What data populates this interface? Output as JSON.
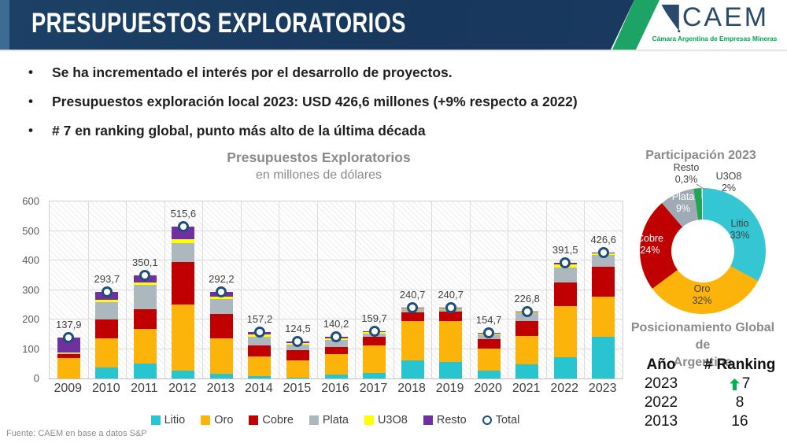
{
  "header": {
    "title": "PRESUPUESTOS EXPLORATORIOS",
    "logo_text": "CAEM",
    "logo_subtitle": "Cámara Argentina de Empresas Mineras"
  },
  "bullets": [
    "Se ha incrementado el interés por el desarrollo de proyectos.",
    "Presupuestos exploración local 2023: USD 426,6 millones (+9% respecto a 2022)",
    "# 7 en ranking global, punto más alto de la última década"
  ],
  "chart_data": [
    {
      "type": "bar",
      "stacked": true,
      "title": "Presupuestos Exploratorios",
      "subtitle": "en millones de dólares",
      "categories": [
        "2009",
        "2010",
        "2011",
        "2012",
        "2013",
        "2014",
        "2015",
        "2016",
        "2017",
        "2018",
        "2019",
        "2020",
        "2021",
        "2022",
        "2023"
      ],
      "series": [
        {
          "name": "Litio",
          "color": "#28c4d0",
          "values": [
            0,
            38,
            50,
            28,
            15,
            8,
            4,
            13,
            18,
            62,
            55,
            28,
            48,
            72,
            140.8
          ]
        },
        {
          "name": "Oro",
          "color": "#fdb40a",
          "values": [
            70,
            97,
            118,
            224,
            120,
            67,
            58,
            70,
            95,
            132,
            140,
            73,
            97,
            173,
            136.5
          ]
        },
        {
          "name": "Cobre",
          "color": "#c00000",
          "values": [
            13,
            65,
            67,
            144,
            83,
            37,
            33,
            25,
            28,
            30,
            33,
            32,
            50,
            80,
            102.4
          ]
        },
        {
          "name": "Plata",
          "color": "#adb8be",
          "values": [
            2,
            58,
            83,
            62,
            52,
            30,
            20,
            22,
            10,
            10,
            7,
            15.7,
            25.8,
            50,
            38.4
          ]
        },
        {
          "name": "U3O8",
          "color": "#ffff00",
          "values": [
            4,
            10,
            8,
            14,
            7,
            8,
            5.5,
            7,
            6,
            5,
            4,
            4,
            4,
            12,
            7.2
          ]
        },
        {
          "name": "Resto",
          "color": "#7030a0",
          "values": [
            48.9,
            25.7,
            24.1,
            43.6,
            15.2,
            7.2,
            4,
            3.2,
            2.7,
            1.7,
            1.7,
            2,
            2,
            4.5,
            1.3
          ]
        }
      ],
      "total_series": {
        "name": "Total",
        "marker": "circle",
        "values": [
          137.9,
          293.7,
          350.1,
          515.6,
          292.2,
          157.2,
          124.5,
          140.2,
          159.7,
          240.7,
          240.7,
          154.7,
          226.8,
          391.5,
          426.6
        ],
        "labels": [
          "137,9",
          "293,7",
          "350,1",
          "515,6",
          "292,2",
          "157,2",
          "124,5",
          "140,2",
          "159,7",
          "240,7",
          "240,7",
          "154,7",
          "226,8",
          "391,5",
          "426,6"
        ]
      },
      "ylim": [
        0,
        600
      ],
      "ystep": 100,
      "grid": true,
      "legend_position": "bottom"
    },
    {
      "type": "pie",
      "donut": true,
      "title": "Participación 2023",
      "slices": [
        {
          "label": "Litio",
          "pct": "33%",
          "value": 33,
          "color": "#35c6d4"
        },
        {
          "label": "Oro",
          "pct": "32%",
          "value": 32,
          "color": "#fdb40a"
        },
        {
          "label": "Cobre",
          "pct": "24%",
          "value": 24,
          "color": "#c00000"
        },
        {
          "label": "Plata",
          "pct": "9%",
          "value": 9,
          "color": "#9faab4"
        },
        {
          "label": "U3O8",
          "pct": "2%",
          "value": 2,
          "color": "#22a455"
        },
        {
          "label": "Resto",
          "pct": "0,3%",
          "value": 0.3,
          "color": "#e9edee"
        }
      ]
    }
  ],
  "ranking": {
    "title_line1": "Posicionamiento Global de",
    "title_line2": "Argentina",
    "col_year": "Año",
    "col_rank": "# Ranking",
    "rows": [
      {
        "year": "2023",
        "rank": "7",
        "up": true
      },
      {
        "year": "2022",
        "rank": "8",
        "up": false
      },
      {
        "year": "2013",
        "rank": "16",
        "up": false
      }
    ]
  },
  "footer": "Fuente: CAEM en base a datos S&P",
  "colors": {
    "header_navy": "#17375c",
    "accent_green": "#00a550",
    "total_marker_ring": "#1f4e79",
    "arrow_up_green": "#00b050"
  }
}
